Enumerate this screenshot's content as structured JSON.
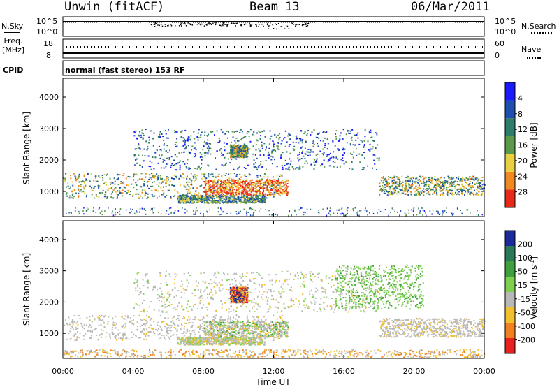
{
  "header": {
    "title": "Unwin (fitACF)",
    "beam": "Beam 13",
    "date": "06/Mar/2011"
  },
  "top_panel": {
    "left_label": "N.Sky",
    "left_ticks": [
      "10^5",
      "10^0"
    ],
    "right_ticks": [
      "10^5",
      "10^0"
    ],
    "right_label": "N.Search"
  },
  "freq_panel": {
    "left_label_line1": "Freq.",
    "left_label_line2": "[MHz]",
    "left_ticks": [
      "18",
      "8"
    ],
    "right_ticks": [
      "60",
      "0"
    ],
    "right_label": "Nave"
  },
  "cpid": {
    "label": "CPID",
    "text": "normal (fast stereo) 153 RF"
  },
  "chart_data": [
    {
      "type": "heatmap",
      "panel": "power",
      "ylabel": "Slant Range [km]",
      "ylim": [
        200,
        4600
      ],
      "yticks": [
        "1000",
        "2000",
        "3000",
        "4000"
      ],
      "xlim_hours": [
        0,
        24
      ],
      "colorbar": {
        "label": "Power [dB]",
        "ticks": [
          "4",
          "8",
          "12",
          "16",
          "20",
          "24",
          "28"
        ],
        "colors": [
          "#1a1aff",
          "#1e4fb0",
          "#2e7d6a",
          "#5a9a4a",
          "#e8d040",
          "#f08a20",
          "#e82818"
        ]
      },
      "bands": [
        {
          "hours": [
            0,
            12.5
          ],
          "range_km": [
            800,
            1600
          ],
          "level": "high"
        },
        {
          "hours": [
            8,
            12.8
          ],
          "range_km": [
            900,
            1400
          ],
          "level": "very_high"
        },
        {
          "hours": [
            9.5,
            10.5
          ],
          "range_km": [
            2100,
            2500
          ],
          "level": "high"
        },
        {
          "hours": [
            6.5,
            11.5
          ],
          "range_km": [
            650,
            900
          ],
          "level": "medium"
        },
        {
          "hours": [
            4,
            18
          ],
          "range_km": [
            1700,
            3000
          ],
          "level": "low"
        },
        {
          "hours": [
            18,
            24
          ],
          "range_km": [
            900,
            1500
          ],
          "level": "high"
        }
      ]
    },
    {
      "type": "heatmap",
      "panel": "velocity",
      "ylabel": "Slant Range [km]",
      "ylim": [
        200,
        4600
      ],
      "yticks": [
        "1000",
        "2000",
        "3000",
        "4000"
      ],
      "xlim_hours": [
        0,
        24
      ],
      "xticks": [
        "00:00",
        "04:00",
        "08:00",
        "12:00",
        "16:00",
        "20:00",
        "00:00"
      ],
      "xlabel": "Time UT",
      "colorbar": {
        "label": "Velocity [m s",
        "label_exp": "-1",
        "label_end": "]",
        "ticks": [
          "200",
          "100",
          "50",
          "15",
          "-15",
          "-50",
          "-100",
          "-200"
        ],
        "colors": [
          "#1a2a9a",
          "#2a7a5a",
          "#40a040",
          "#80d050",
          "#b8b8b8",
          "#f0c030",
          "#f08020",
          "#e82020"
        ]
      }
    }
  ]
}
